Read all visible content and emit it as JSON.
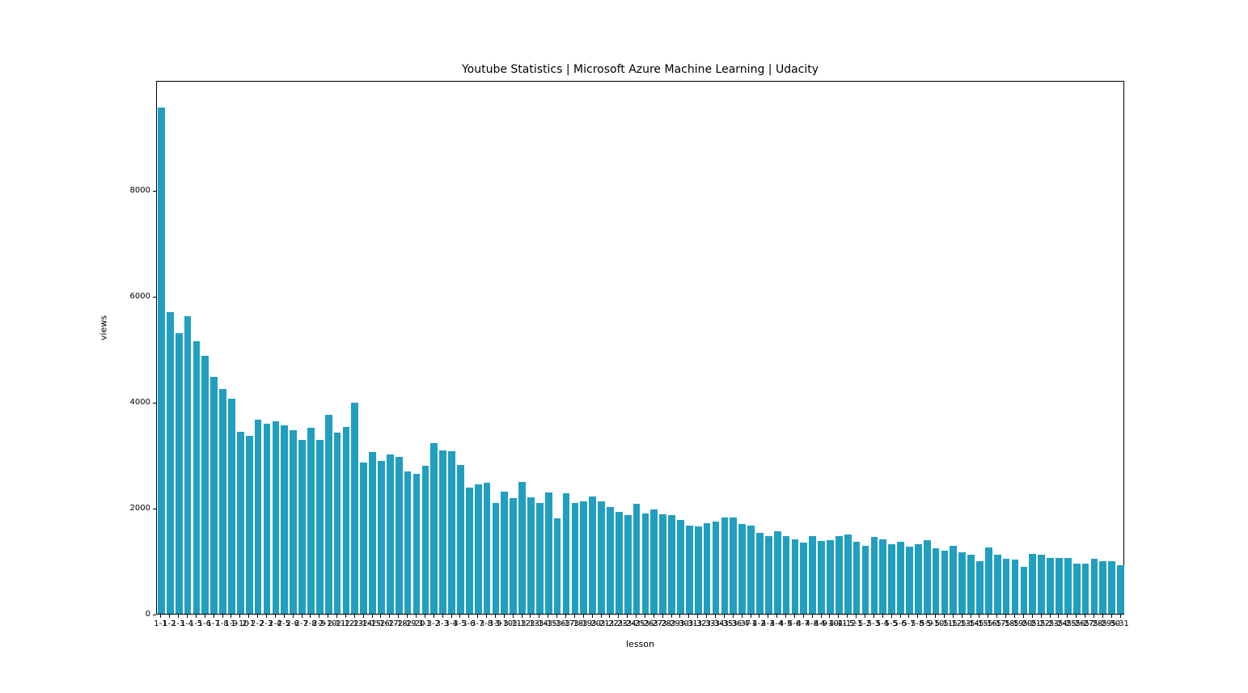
{
  "figure": {
    "title": "Youtube Statistics | Microsoft Azure Machine Learning | Udacity",
    "xlabel": "lesson",
    "ylabel": "views",
    "background": "#ffffff"
  },
  "chart_data": {
    "type": "bar",
    "title": "Youtube Statistics | Microsoft Azure Machine Learning | Udacity",
    "xlabel": "lesson",
    "ylabel": "views",
    "bar_color": "#219fc0",
    "grid": false,
    "legend": null,
    "ylim": [
      0,
      10080
    ],
    "yticks": [
      0,
      2000,
      4000,
      6000,
      8000
    ],
    "categories": [
      "1-1",
      "1-2",
      "1-3",
      "1-4",
      "1-5",
      "1-6",
      "1-7",
      "1-8",
      "1-9",
      "1-10",
      "2-1",
      "2-2",
      "2-3",
      "2-4",
      "2-5",
      "2-6",
      "2-7",
      "2-8",
      "2-9",
      "2-10",
      "2-11",
      "2-12",
      "2-13",
      "2-14",
      "2-15",
      "2-16",
      "2-17",
      "2-18",
      "2-19",
      "2-20",
      "3-1",
      "3-2",
      "3-3",
      "3-4",
      "3-5",
      "3-6",
      "3-7",
      "3-8",
      "3-9",
      "3-10",
      "3-11",
      "3-12",
      "3-13",
      "3-14",
      "3-15",
      "3-16",
      "3-17",
      "3-18",
      "3-19",
      "3-20",
      "3-21",
      "3-22",
      "3-23",
      "3-24",
      "3-25",
      "3-26",
      "3-27",
      "3-28",
      "3-29",
      "3-30",
      "3-31",
      "3-32",
      "3-33",
      "3-34",
      "3-35",
      "3-36",
      "3-37",
      "4-1",
      "4-2",
      "4-3",
      "4-4",
      "4-5",
      "4-6",
      "4-7",
      "4-8",
      "4-9",
      "4-10",
      "4-11",
      "4-12",
      "5-1",
      "5-2",
      "5-3",
      "5-4",
      "5-5",
      "5-6",
      "5-7",
      "5-8",
      "5-9",
      "5-10",
      "5-11",
      "5-12",
      "5-13",
      "5-14",
      "5-15",
      "5-16",
      "5-17",
      "5-18",
      "5-19",
      "5-20",
      "5-21",
      "5-22",
      "5-23",
      "5-24",
      "5-25",
      "5-26",
      "5-27",
      "5-28",
      "5-29",
      "5-30",
      "5-31"
    ],
    "values": [
      9560,
      5700,
      5300,
      5620,
      5150,
      4870,
      4480,
      4240,
      4070,
      3440,
      3360,
      3660,
      3590,
      3630,
      3560,
      3460,
      3290,
      3520,
      3290,
      3750,
      3420,
      3530,
      3990,
      2860,
      3050,
      2880,
      3010,
      2960,
      2690,
      2650,
      2800,
      3230,
      3090,
      3070,
      2810,
      2380,
      2440,
      2470,
      2100,
      2310,
      2180,
      2490,
      2200,
      2100,
      2290,
      1810,
      2280,
      2100,
      2120,
      2220,
      2130,
      2020,
      1930,
      1870,
      2080,
      1900,
      1970,
      1880,
      1870,
      1770,
      1660,
      1650,
      1710,
      1740,
      1820,
      1820,
      1690,
      1670,
      1530,
      1470,
      1560,
      1460,
      1400,
      1350,
      1460,
      1370,
      1390,
      1470,
      1500,
      1360,
      1290,
      1450,
      1410,
      1320,
      1360,
      1270,
      1320,
      1390,
      1240,
      1190,
      1280,
      1160,
      1110,
      1000,
      1250,
      1110,
      1040,
      1020,
      890,
      1130,
      1110,
      1060,
      1050,
      1050,
      950,
      950,
      1040,
      1000,
      1000,
      910
    ]
  }
}
